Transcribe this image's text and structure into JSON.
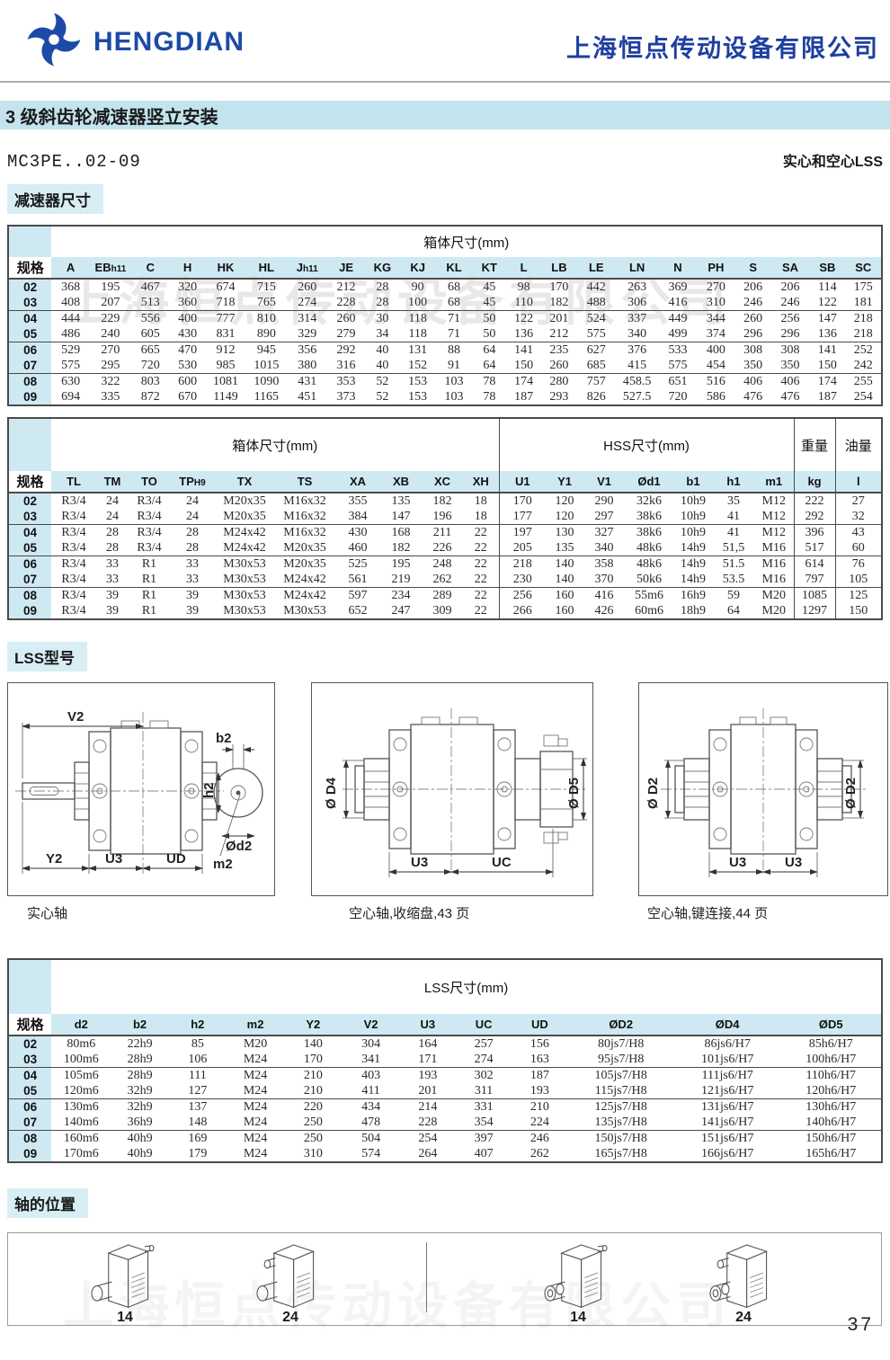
{
  "header": {
    "brand": "HENGDIAN",
    "company": "上海恒点传动设备有限公司"
  },
  "title_bar": "3 级斜齿轮减速器竖立安装",
  "model_line": {
    "model": "MC3PE..02-09",
    "right": "实心和空心LSS"
  },
  "sections": {
    "dimensions": "减速器尺寸",
    "lss_type": "LSS型号",
    "shaft_pos": "轴的位置"
  },
  "watermark": {
    "text": "上海恒点传动设备有限公司"
  },
  "colors": {
    "brand_blue": "#1e3fa0",
    "band_blue": "#c3e4ee",
    "table_band": "#cfe9f2"
  },
  "table1": {
    "spec_label": "规格",
    "group_header": "箱体尺寸(mm)",
    "columns": [
      "A",
      [
        "EB",
        "h11"
      ],
      "C",
      "H",
      "HK",
      "HL",
      [
        "J",
        "h11"
      ],
      "JE",
      "KG",
      "KJ",
      "KL",
      "KT",
      "L",
      "LB",
      "LE",
      "LN",
      "N",
      "PH",
      "S",
      "SA",
      "SB",
      "SC"
    ],
    "rows": [
      {
        "spec": "02",
        "values": [
          "368",
          "195",
          "467",
          "320",
          "674",
          "715",
          "260",
          "212",
          "28",
          "90",
          "68",
          "45",
          "98",
          "170",
          "442",
          "263",
          "369",
          "270",
          "206",
          "206",
          "114",
          "175"
        ]
      },
      {
        "spec": "03",
        "values": [
          "408",
          "207",
          "513",
          "360",
          "718",
          "765",
          "274",
          "228",
          "28",
          "100",
          "68",
          "45",
          "110",
          "182",
          "488",
          "306",
          "416",
          "310",
          "246",
          "246",
          "122",
          "181"
        ]
      },
      {
        "spec": "04",
        "values": [
          "444",
          "229",
          "556",
          "400",
          "777",
          "810",
          "314",
          "260",
          "30",
          "118",
          "71",
          "50",
          "122",
          "201",
          "524",
          "337",
          "449",
          "344",
          "260",
          "256",
          "147",
          "218"
        ]
      },
      {
        "spec": "05",
        "values": [
          "486",
          "240",
          "605",
          "430",
          "831",
          "890",
          "329",
          "279",
          "34",
          "118",
          "71",
          "50",
          "136",
          "212",
          "575",
          "340",
          "499",
          "374",
          "296",
          "296",
          "136",
          "218"
        ]
      },
      {
        "spec": "06",
        "values": [
          "529",
          "270",
          "665",
          "470",
          "912",
          "945",
          "356",
          "292",
          "40",
          "131",
          "88",
          "64",
          "141",
          "235",
          "627",
          "376",
          "533",
          "400",
          "308",
          "308",
          "141",
          "252"
        ]
      },
      {
        "spec": "07",
        "values": [
          "575",
          "295",
          "720",
          "530",
          "985",
          "1015",
          "380",
          "316",
          "40",
          "152",
          "91",
          "64",
          "150",
          "260",
          "685",
          "415",
          "575",
          "454",
          "350",
          "350",
          "150",
          "242"
        ]
      },
      {
        "spec": "08",
        "values": [
          "630",
          "322",
          "803",
          "600",
          "1081",
          "1090",
          "431",
          "353",
          "52",
          "153",
          "103",
          "78",
          "174",
          "280",
          "757",
          "458.5",
          "651",
          "516",
          "406",
          "406",
          "174",
          "255"
        ]
      },
      {
        "spec": "09",
        "values": [
          "694",
          "335",
          "872",
          "670",
          "1149",
          "1165",
          "451",
          "373",
          "52",
          "153",
          "103",
          "78",
          "187",
          "293",
          "826",
          "527.5",
          "720",
          "586",
          "476",
          "476",
          "187",
          "254"
        ]
      }
    ]
  },
  "table2": {
    "spec_label": "规格",
    "groups": [
      {
        "label": "箱体尺寸(mm)",
        "cols": [
          "TL",
          "TM",
          "TO",
          [
            "TP",
            "H9"
          ],
          "TX",
          "TS",
          "XA",
          "XB",
          "XC",
          "XH"
        ]
      },
      {
        "label": "HSS尺寸(mm)",
        "cols": [
          "U1",
          "Y1",
          "V1",
          "Ød1",
          "b1",
          "h1",
          "m1"
        ]
      },
      {
        "label": "重量",
        "cols": [
          "kg"
        ]
      },
      {
        "label": "油量",
        "cols": [
          "l"
        ]
      }
    ],
    "rows": [
      {
        "spec": "02",
        "values": [
          "R3/4",
          "24",
          "R3/4",
          "24",
          "M20x35",
          "M16x32",
          "355",
          "135",
          "182",
          "18",
          "170",
          "120",
          "290",
          "32k6",
          "10h9",
          "35",
          "M12",
          "222",
          "27"
        ]
      },
      {
        "spec": "03",
        "values": [
          "R3/4",
          "24",
          "R3/4",
          "24",
          "M20x35",
          "M16x32",
          "384",
          "147",
          "196",
          "18",
          "177",
          "120",
          "297",
          "38k6",
          "10h9",
          "41",
          "M12",
          "292",
          "32"
        ]
      },
      {
        "spec": "04",
        "values": [
          "R3/4",
          "28",
          "R3/4",
          "28",
          "M24x42",
          "M16x32",
          "430",
          "168",
          "211",
          "22",
          "197",
          "130",
          "327",
          "38k6",
          "10h9",
          "41",
          "M12",
          "396",
          "43"
        ]
      },
      {
        "spec": "05",
        "values": [
          "R3/4",
          "28",
          "R3/4",
          "28",
          "M24x42",
          "M20x35",
          "460",
          "182",
          "226",
          "22",
          "205",
          "135",
          "340",
          "48k6",
          "14h9",
          "51,5",
          "M16",
          "517",
          "60"
        ]
      },
      {
        "spec": "06",
        "values": [
          "R3/4",
          "33",
          "R1",
          "33",
          "M30x53",
          "M20x35",
          "525",
          "195",
          "248",
          "22",
          "218",
          "140",
          "358",
          "48k6",
          "14h9",
          "51.5",
          "M16",
          "614",
          "76"
        ]
      },
      {
        "spec": "07",
        "values": [
          "R3/4",
          "33",
          "R1",
          "33",
          "M30x53",
          "M24x42",
          "561",
          "219",
          "262",
          "22",
          "230",
          "140",
          "370",
          "50k6",
          "14h9",
          "53.5",
          "M16",
          "797",
          "105"
        ]
      },
      {
        "spec": "08",
        "values": [
          "R3/4",
          "39",
          "R1",
          "39",
          "M30x53",
          "M24x42",
          "597",
          "234",
          "289",
          "22",
          "256",
          "160",
          "416",
          "55m6",
          "16h9",
          "59",
          "M20",
          "1085",
          "125"
        ]
      },
      {
        "spec": "09",
        "values": [
          "R3/4",
          "39",
          "R1",
          "39",
          "M30x53",
          "M30x53",
          "652",
          "247",
          "309",
          "22",
          "266",
          "160",
          "426",
          "60m6",
          "18h9",
          "64",
          "M20",
          "1297",
          "150"
        ]
      }
    ]
  },
  "drawings": {
    "d1": {
      "caption": "实心轴",
      "labels": {
        "v2": "V2",
        "b2": "b2",
        "h2": "h2",
        "d2": "Ød2",
        "m2": "m2",
        "y2": "Y2",
        "u3": "U3",
        "ud": "UD"
      }
    },
    "d2": {
      "caption": "空心轴,收缩盘,43 页",
      "labels": {
        "d4": "Ø D4",
        "d5": "Ø D5",
        "u3": "U3",
        "uc": "UC"
      }
    },
    "d3": {
      "caption": "空心轴,键连接,44 页",
      "labels": {
        "d2l": "Ø D2",
        "d2r": "Ø D2",
        "u3l": "U3",
        "u3r": "U3"
      }
    }
  },
  "table3": {
    "spec_label": "规格",
    "group_header": "LSS尺寸(mm)",
    "columns": [
      "d2",
      "b2",
      "h2",
      "m2",
      "Y2",
      "V2",
      "U3",
      "UC",
      "UD",
      "ØD2",
      "ØD4",
      "ØD5"
    ],
    "rows": [
      {
        "spec": "02",
        "values": [
          "80m6",
          "22h9",
          "85",
          "M20",
          "140",
          "304",
          "164",
          "257",
          "156",
          "80js7/H8",
          "86js6/H7",
          "85h6/H7"
        ]
      },
      {
        "spec": "03",
        "values": [
          "100m6",
          "28h9",
          "106",
          "M24",
          "170",
          "341",
          "171",
          "274",
          "163",
          "95js7/H8",
          "101js6/H7",
          "100h6/H7"
        ]
      },
      {
        "spec": "04",
        "values": [
          "105m6",
          "28h9",
          "111",
          "M24",
          "210",
          "403",
          "193",
          "302",
          "187",
          "105js7/H8",
          "111js6/H7",
          "110h6/H7"
        ]
      },
      {
        "spec": "05",
        "values": [
          "120m6",
          "32h9",
          "127",
          "M24",
          "210",
          "411",
          "201",
          "311",
          "193",
          "115js7/H8",
          "121js6/H7",
          "120h6/H7"
        ]
      },
      {
        "spec": "06",
        "values": [
          "130m6",
          "32h9",
          "137",
          "M24",
          "220",
          "434",
          "214",
          "331",
          "210",
          "125js7/H8",
          "131js6/H7",
          "130h6/H7"
        ]
      },
      {
        "spec": "07",
        "values": [
          "140m6",
          "36h9",
          "148",
          "M24",
          "250",
          "478",
          "228",
          "354",
          "224",
          "135js7/H8",
          "141js6/H7",
          "140h6/H7"
        ]
      },
      {
        "spec": "08",
        "values": [
          "160m6",
          "40h9",
          "169",
          "M24",
          "250",
          "504",
          "254",
          "397",
          "246",
          "150js7/H8",
          "151js6/H7",
          "150h6/H7"
        ]
      },
      {
        "spec": "09",
        "values": [
          "170m6",
          "40h9",
          "179",
          "M24",
          "310",
          "574",
          "264",
          "407",
          "262",
          "165js7/H8",
          "166js6/H7",
          "165h6/H7"
        ]
      }
    ]
  },
  "shaft_positions": [
    "14",
    "24",
    "14",
    "24"
  ],
  "page_number": "37"
}
